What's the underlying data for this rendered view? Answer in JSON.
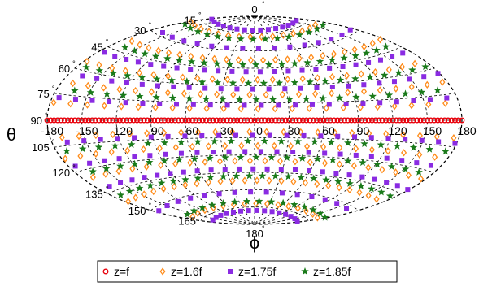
{
  "chart_data": {
    "type": "scatter",
    "projection": "aitoff",
    "title": "",
    "xlabel": "ϕ",
    "ylabel": "θ",
    "xlim": [
      -180,
      180
    ],
    "ylim": [
      0,
      180
    ],
    "grid": true,
    "legend_position": "bottom",
    "phi_ticks": [
      -180,
      -150,
      -120,
      -90,
      -60,
      -30,
      0,
      30,
      60,
      90,
      120,
      150,
      180
    ],
    "phi_tick_labels": [
      "-180",
      "-150",
      "-120",
      "-90",
      "-60",
      "-30",
      "0",
      "30",
      "60",
      "90",
      "120",
      "150",
      "180"
    ],
    "theta_ticks": [
      0,
      15,
      30,
      45,
      60,
      75,
      90,
      105,
      120,
      135,
      150,
      165,
      180
    ],
    "theta_tick_labels": [
      "0",
      "15",
      "30",
      "45",
      "60",
      "75",
      "90",
      "105",
      "120",
      "135",
      "150",
      "165",
      "180"
    ],
    "degree_symbol": "°",
    "series": [
      {
        "name": "z=f",
        "marker": "circle-open",
        "color": "#e8000b",
        "description_points": "theta constant at 90 across all phi",
        "theta": 90,
        "phi_range": [
          -180,
          180
        ],
        "count": 120
      },
      {
        "name": "z=1.6f",
        "marker": "diamond-open",
        "color": "#ff8c1a",
        "theta_rows": [
          18,
          38,
          55,
          68,
          80,
          100,
          112,
          125,
          142,
          162
        ],
        "phi_range": [
          -180,
          180
        ]
      },
      {
        "name": "z=1.75f",
        "marker": "square-filled",
        "color": "#8a2be2",
        "theta_rows": [
          12,
          28,
          48,
          63,
          77,
          103,
          117,
          132,
          152,
          168
        ],
        "phi_range": [
          -180,
          180
        ]
      },
      {
        "name": "z=1.85f",
        "marker": "star-filled",
        "color": "#1a7a1a",
        "theta_rows": [
          20,
          42,
          58,
          72,
          108,
          122,
          138,
          160
        ],
        "phi_range": [
          -180,
          180
        ]
      }
    ]
  }
}
